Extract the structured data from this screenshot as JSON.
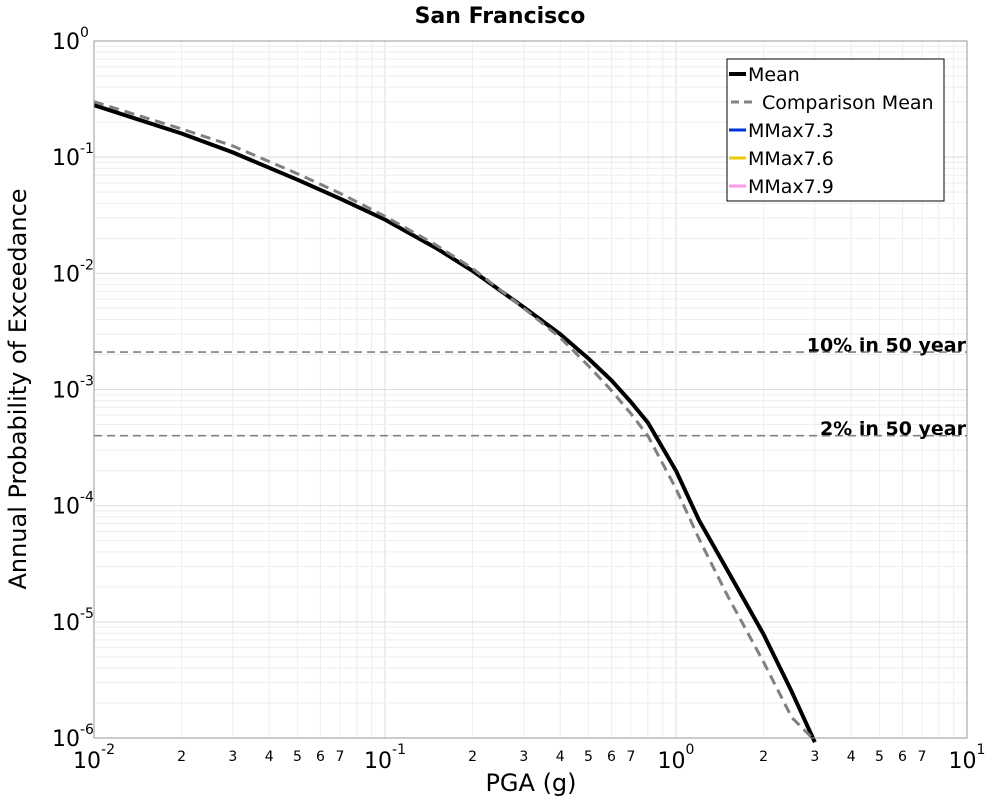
{
  "chart_data": {
    "type": "line",
    "title": "San Francisco",
    "xlabel": "PGA (g)",
    "ylabel": "Annual Probability of Exceedance",
    "xscale": "log",
    "yscale": "log",
    "xlim": [
      0.01,
      10
    ],
    "ylim": [
      1e-06,
      1
    ],
    "grid": true,
    "legend_position": "top-right",
    "x_major_ticks": [
      {
        "value": 0.01,
        "base": "10",
        "exp": "-2"
      },
      {
        "value": 0.1,
        "base": "10",
        "exp": "-1"
      },
      {
        "value": 1,
        "base": "10",
        "exp": "0"
      },
      {
        "value": 10,
        "base": "10",
        "exp": "1"
      }
    ],
    "x_minor_labels": [
      "2",
      "3",
      "4",
      "5",
      "6",
      "7"
    ],
    "y_major_ticks": [
      {
        "value": 1,
        "base": "10",
        "exp": "0"
      },
      {
        "value": 0.1,
        "base": "10",
        "exp": "-1"
      },
      {
        "value": 0.01,
        "base": "10",
        "exp": "-2"
      },
      {
        "value": 0.001,
        "base": "10",
        "exp": "-3"
      },
      {
        "value": 0.0001,
        "base": "10",
        "exp": "-4"
      },
      {
        "value": 1e-05,
        "base": "10",
        "exp": "-5"
      },
      {
        "value": 1e-06,
        "base": "10",
        "exp": "-6"
      }
    ],
    "series": [
      {
        "name": "Mean",
        "color": "#000000",
        "style": "solid",
        "x": [
          0.01,
          0.02,
          0.03,
          0.05,
          0.07,
          0.1,
          0.15,
          0.2,
          0.3,
          0.4,
          0.5,
          0.6,
          0.7,
          0.8,
          1.0,
          1.2,
          1.5,
          2.0,
          2.5,
          3.0
        ],
        "y": [
          0.28,
          0.16,
          0.11,
          0.064,
          0.044,
          0.029,
          0.0165,
          0.0105,
          0.0051,
          0.003,
          0.00185,
          0.0012,
          0.00078,
          0.00052,
          0.0002,
          7.5e-05,
          2.8e-05,
          7.8e-06,
          2.5e-06,
          9.2e-07
        ]
      },
      {
        "name": "Comparison Mean",
        "color": "#808080",
        "style": "dashed",
        "x": [
          0.01,
          0.02,
          0.03,
          0.05,
          0.07,
          0.1,
          0.15,
          0.2,
          0.3,
          0.4,
          0.5,
          0.6,
          0.7,
          0.8,
          1.0,
          1.2,
          1.5,
          2.0,
          2.5,
          3.0
        ],
        "y": [
          0.3,
          0.175,
          0.125,
          0.072,
          0.049,
          0.031,
          0.0175,
          0.011,
          0.005,
          0.0028,
          0.0016,
          0.00098,
          0.00062,
          0.0004,
          0.00014,
          5.2e-05,
          1.7e-05,
          4.5e-06,
          1.5e-06,
          9.5e-07
        ]
      },
      {
        "name": "MMax7.3",
        "color": "#0033dd",
        "style": "solid",
        "x": [],
        "y": []
      },
      {
        "name": "MMax7.6",
        "color": "#eec800",
        "style": "solid",
        "x": [],
        "y": []
      },
      {
        "name": "MMax7.9",
        "color": "#ff99ee",
        "style": "solid",
        "x": [],
        "y": []
      }
    ],
    "reference_lines": [
      {
        "label": "10% in 50 year",
        "y": 0.0021,
        "color": "#808080"
      },
      {
        "label": "2% in 50 year",
        "y": 0.0004,
        "color": "#808080"
      }
    ]
  }
}
